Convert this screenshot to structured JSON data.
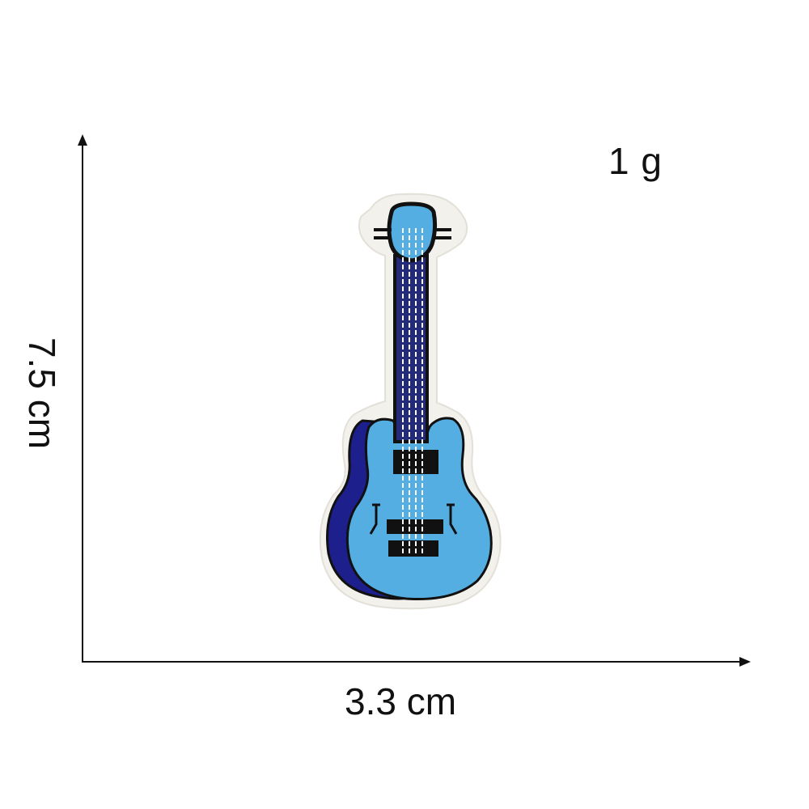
{
  "dimensions": {
    "weight": "1 g",
    "width": "3.3 cm",
    "height": "7.5 cm"
  },
  "product": {
    "icon": "guitar-patch-icon",
    "colors": {
      "body_light_blue": "#55aee2",
      "body_shadow_blue": "#1c1f8c",
      "neck_dark_blue": "#232a7a",
      "outline_black": "#111111",
      "patch_border": "#f3f1ec",
      "stitch_white": "#ffffff"
    }
  },
  "axes": {
    "color": "#111111"
  }
}
